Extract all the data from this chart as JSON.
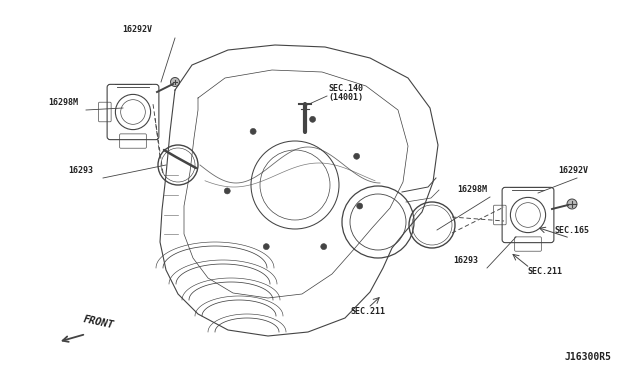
{
  "bg_color": "#f0f0f0",
  "line_color": "#444444",
  "text_color": "#222222",
  "diagram_code": "J16300R5",
  "labels": {
    "tl_16292V": "16292V",
    "tl_16298M": "16298M",
    "tl_16293": "16293",
    "r_16298M": "16298M",
    "r_16292V": "16292V",
    "r_16293": "16293",
    "sec140": "SEC.140",
    "sec14001": "(14001)",
    "sec165": "SEC.165",
    "sec211a": "SEC.211",
    "sec211b": "SEC.211",
    "front": "FRONT"
  },
  "font_size_label": 6.0,
  "font_size_code": 7.0
}
